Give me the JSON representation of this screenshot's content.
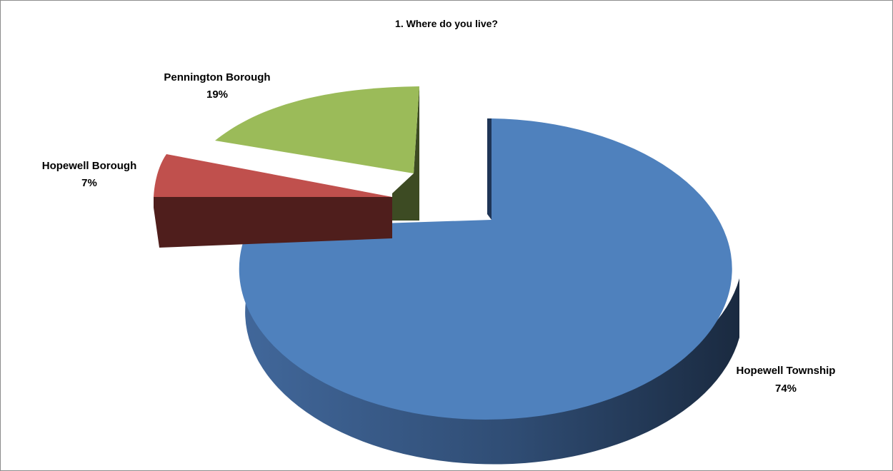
{
  "chart_data": {
    "type": "pie",
    "title": "1. Where do you live?",
    "slices": [
      {
        "label": "Hopewell Township",
        "percent_label": "74%",
        "value": 74,
        "color": "#4f81bd"
      },
      {
        "label": "Hopewell Borough",
        "percent_label": "7%",
        "value": 7,
        "color": "#c0504d"
      },
      {
        "label": "Pennington Borough",
        "percent_label": "19%",
        "value": 19,
        "color": "#9bbb59"
      }
    ],
    "three_d": true,
    "exploded": true,
    "legend": "none"
  }
}
